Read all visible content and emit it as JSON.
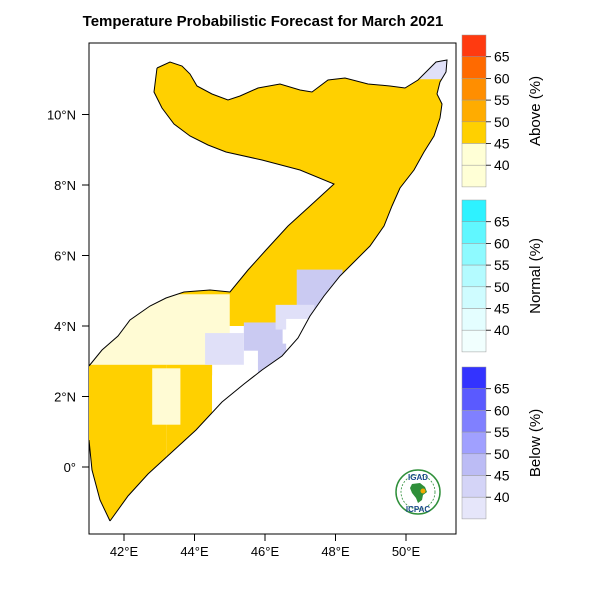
{
  "title": "Temperature Probabilistic Forecast for March 2021",
  "map": {
    "x_ticks": [
      {
        "lon": 42,
        "label": "42°E"
      },
      {
        "lon": 44,
        "label": "44°E"
      },
      {
        "lon": 46,
        "label": "46°E"
      },
      {
        "lon": 48,
        "label": "48°E"
      },
      {
        "lon": 50,
        "label": "50°E"
      }
    ],
    "y_ticks": [
      {
        "lat": 10,
        "label": "10°N"
      },
      {
        "lat": 8,
        "label": "8°N"
      },
      {
        "lat": 6,
        "label": "6°N"
      },
      {
        "lat": 4,
        "label": "4°N"
      },
      {
        "lat": 2,
        "label": "2°N"
      },
      {
        "lat": 0,
        "label": "0°"
      }
    ],
    "extent": {
      "lon": [
        41,
        51.3
      ],
      "lat": [
        -1.6,
        12.2
      ]
    }
  },
  "legends": [
    {
      "title": "Above (%)",
      "levels": [
        "65",
        "60",
        "55",
        "50",
        "45",
        "40"
      ],
      "colors": [
        "#ff3a10",
        "#ff6a00",
        "#ff8e00",
        "#ffac00",
        "#ffd000",
        "#ffffd6",
        "#ffffd6"
      ]
    },
    {
      "title": "Normal (%)",
      "levels": [
        "65",
        "60",
        "55",
        "50",
        "45",
        "40"
      ],
      "colors": [
        "#2ef2ff",
        "#60f7ff",
        "#8efaff",
        "#b4fbff",
        "#cffcff",
        "#e4feff",
        "#f1fffe"
      ]
    },
    {
      "title": "Below (%)",
      "levels": [
        "65",
        "60",
        "55",
        "50",
        "45",
        "40"
      ],
      "colors": [
        "#3333ff",
        "#5a5aff",
        "#8080ff",
        "#a0a0ff",
        "#bcbcf5",
        "#d4d4f7",
        "#e6e6fa"
      ]
    }
  ],
  "logo": {
    "top_text": "IGAD",
    "bottom_text": "ICPAC",
    "colors": {
      "ring": "#2f8f3a",
      "africa": "#2f8f3a",
      "accent": "#f2a900"
    }
  },
  "categories": {
    "above_45": "#ffd000",
    "above_40": "#fffbd4",
    "below_40": "#cacaf2",
    "below_light": "#e0e0f8"
  }
}
